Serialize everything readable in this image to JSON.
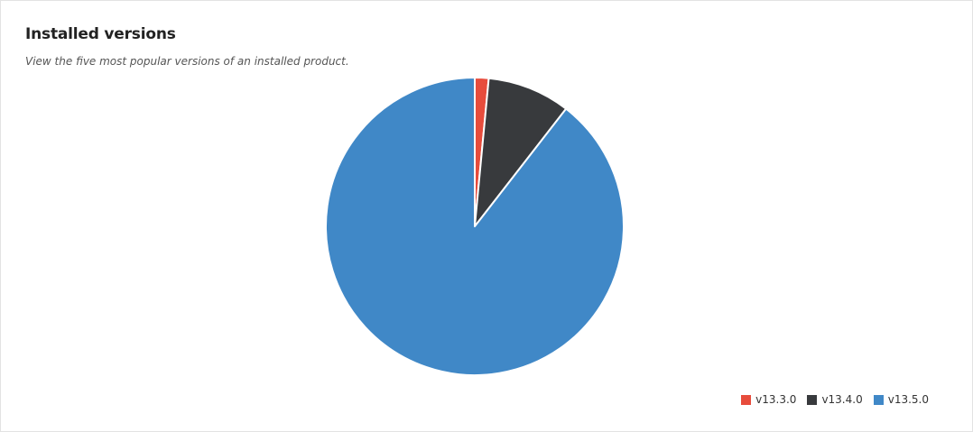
{
  "header": {
    "title": "Installed versions",
    "subtitle": "View the five most popular versions of an installed product."
  },
  "chart_data": {
    "type": "pie",
    "categories": [
      "v13.3.0",
      "v13.4.0",
      "v13.5.0"
    ],
    "values": [
      1.5,
      9.0,
      89.5
    ],
    "colors": [
      "#e74c3c",
      "#383a3d",
      "#4088c7"
    ],
    "legend": "bottom-right",
    "start_angle": "top",
    "direction": "clockwise"
  }
}
